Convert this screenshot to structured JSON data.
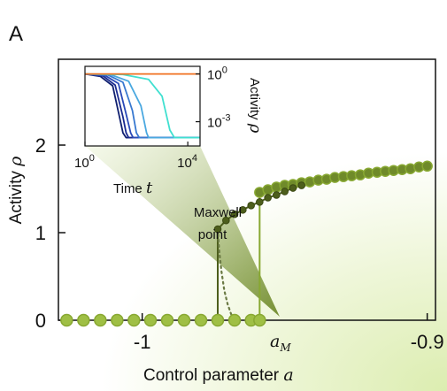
{
  "panel_label": "A",
  "chart_data": [
    {
      "type": "scatter",
      "title": "",
      "xlabel": "Control parameter",
      "xlabel_symbol": "a",
      "ylabel": "Activity",
      "ylabel_symbol": "ρ",
      "xlim": [
        -1.0294,
        -0.8971
      ],
      "ylim": [
        0,
        2.98
      ],
      "xticks": [
        {
          "value": -1.0,
          "label": "-1"
        },
        {
          "value": -0.9,
          "label": "-0.9"
        }
      ],
      "yticks": [
        {
          "value": 0,
          "label": "0"
        },
        {
          "value": 1,
          "label": "1"
        },
        {
          "value": 2,
          "label": "2"
        }
      ],
      "colors": {
        "dark": "#4d5e1c",
        "light": "#88a832",
        "light_fill": "#9fbf45",
        "axis": "#111111"
      },
      "series": [
        {
          "style": "light-large",
          "x": [
            -1.0265,
            -1.0206,
            -1.0147,
            -1.0088,
            -1.0029,
            -0.9971,
            -0.9912,
            -0.9853,
            -0.9794,
            -0.9735,
            -0.9676,
            -0.9618,
            -0.9588
          ],
          "y": [
            0,
            0,
            0,
            0,
            0,
            0,
            0,
            0,
            0,
            0,
            0,
            0,
            0
          ]
        },
        {
          "style": "light-large",
          "x": [
            -0.9588,
            -0.9559,
            -0.9529,
            -0.95,
            -0.9471,
            -0.9441,
            -0.9412,
            -0.9382,
            -0.9353,
            -0.9324,
            -0.9294,
            -0.9265,
            -0.9235,
            -0.9206,
            -0.9176,
            -0.9147,
            -0.9118,
            -0.9088,
            -0.9059,
            -0.9029,
            -0.9
          ],
          "y": [
            1.46,
            1.49,
            1.52,
            1.54,
            1.55,
            1.57,
            1.58,
            1.6,
            1.61,
            1.63,
            1.64,
            1.65,
            1.66,
            1.68,
            1.69,
            1.7,
            1.71,
            1.72,
            1.73,
            1.75,
            1.76
          ]
        },
        {
          "style": "dark-small",
          "x": [
            -0.9735,
            -0.9706,
            -0.9676,
            -0.9647,
            -0.9618,
            -0.9588,
            -0.9559,
            -0.9529,
            -0.95,
            -0.9471,
            -0.9441
          ],
          "y": [
            1.04,
            1.14,
            1.21,
            1.26,
            1.31,
            1.35,
            1.4,
            1.43,
            1.47,
            1.51,
            1.54
          ]
        },
        {
          "style": "dark-dotted",
          "x": [
            -0.9735,
            -0.973,
            -0.9722,
            -0.9712,
            -0.97,
            -0.9688,
            -0.9676
          ],
          "y": [
            1.04,
            0.8,
            0.56,
            0.34,
            0.18,
            0.07,
            0
          ]
        }
      ],
      "jumps": [
        {
          "x": -0.9735,
          "y_from": 0,
          "y_to": 1.04,
          "style": "dark"
        },
        {
          "x": -0.9588,
          "y_from": 0,
          "y_to": 1.46,
          "style": "light"
        }
      ],
      "annotations": [
        {
          "text": "Maxwell",
          "x": -0.9801,
          "y": 1.28
        },
        {
          "text": "point",
          "x": -0.9801,
          "y": 1.02
        },
        {
          "text": "a",
          "subscript": "M",
          "x": -0.9676,
          "y": -0.2
        }
      ]
    },
    {
      "type": "line",
      "title": "",
      "xlabel": "Time",
      "xlabel_symbol": "t",
      "ylabel": "Activity",
      "ylabel_symbol": "ρ",
      "x_scale": "log",
      "y_scale": "log",
      "xlim": [
        1,
        30000
      ],
      "ylim": [
        3e-05,
        3
      ],
      "xticks": [
        {
          "value": 1,
          "label": "10",
          "exp": "0"
        },
        {
          "value": 10000,
          "label": "10",
          "exp": "4"
        }
      ],
      "yticks": [
        {
          "value": 1,
          "label": "10",
          "exp": "0"
        },
        {
          "value": 0.001,
          "label": "10",
          "exp": "-3"
        }
      ],
      "series": [
        {
          "color": "#f07020",
          "t": [
            1,
            30000
          ],
          "y": [
            1.0,
            1.0
          ]
        },
        {
          "color": "#40e0d0",
          "t": [
            1,
            30,
            300,
            1000,
            2000,
            3000,
            30000
          ],
          "y": [
            1.0,
            0.93,
            0.45,
            0.04,
            0.0003,
            0.0001,
            0.0001
          ]
        },
        {
          "color": "#4aa8e0",
          "t": [
            1,
            10,
            50,
            150,
            250,
            300,
            30000
          ],
          "y": [
            1.0,
            0.9,
            0.35,
            0.01,
            0.0002,
            0.0001,
            0.0001
          ]
        },
        {
          "color": "#3878d0",
          "t": [
            1,
            8,
            30,
            70,
            100,
            130,
            30000
          ],
          "y": [
            1.0,
            0.85,
            0.3,
            0.005,
            0.0002,
            0.0001,
            0.0001
          ]
        },
        {
          "color": "#2a4ab8",
          "t": [
            1,
            6,
            20,
            40,
            60,
            75,
            30000
          ],
          "y": [
            1.0,
            0.8,
            0.25,
            0.003,
            0.0002,
            0.0001,
            0.0001
          ]
        },
        {
          "color": "#1a2a90",
          "t": [
            1,
            5,
            15,
            30,
            40,
            50,
            30000
          ],
          "y": [
            1.0,
            0.75,
            0.2,
            0.002,
            0.0002,
            0.0001,
            0.0001
          ]
        },
        {
          "color": "#102070",
          "t": [
            1,
            4,
            12,
            22,
            30,
            40,
            30000
          ],
          "y": [
            1.0,
            0.7,
            0.18,
            0.002,
            0.0002,
            0.0001,
            0.0001
          ]
        }
      ]
    }
  ]
}
